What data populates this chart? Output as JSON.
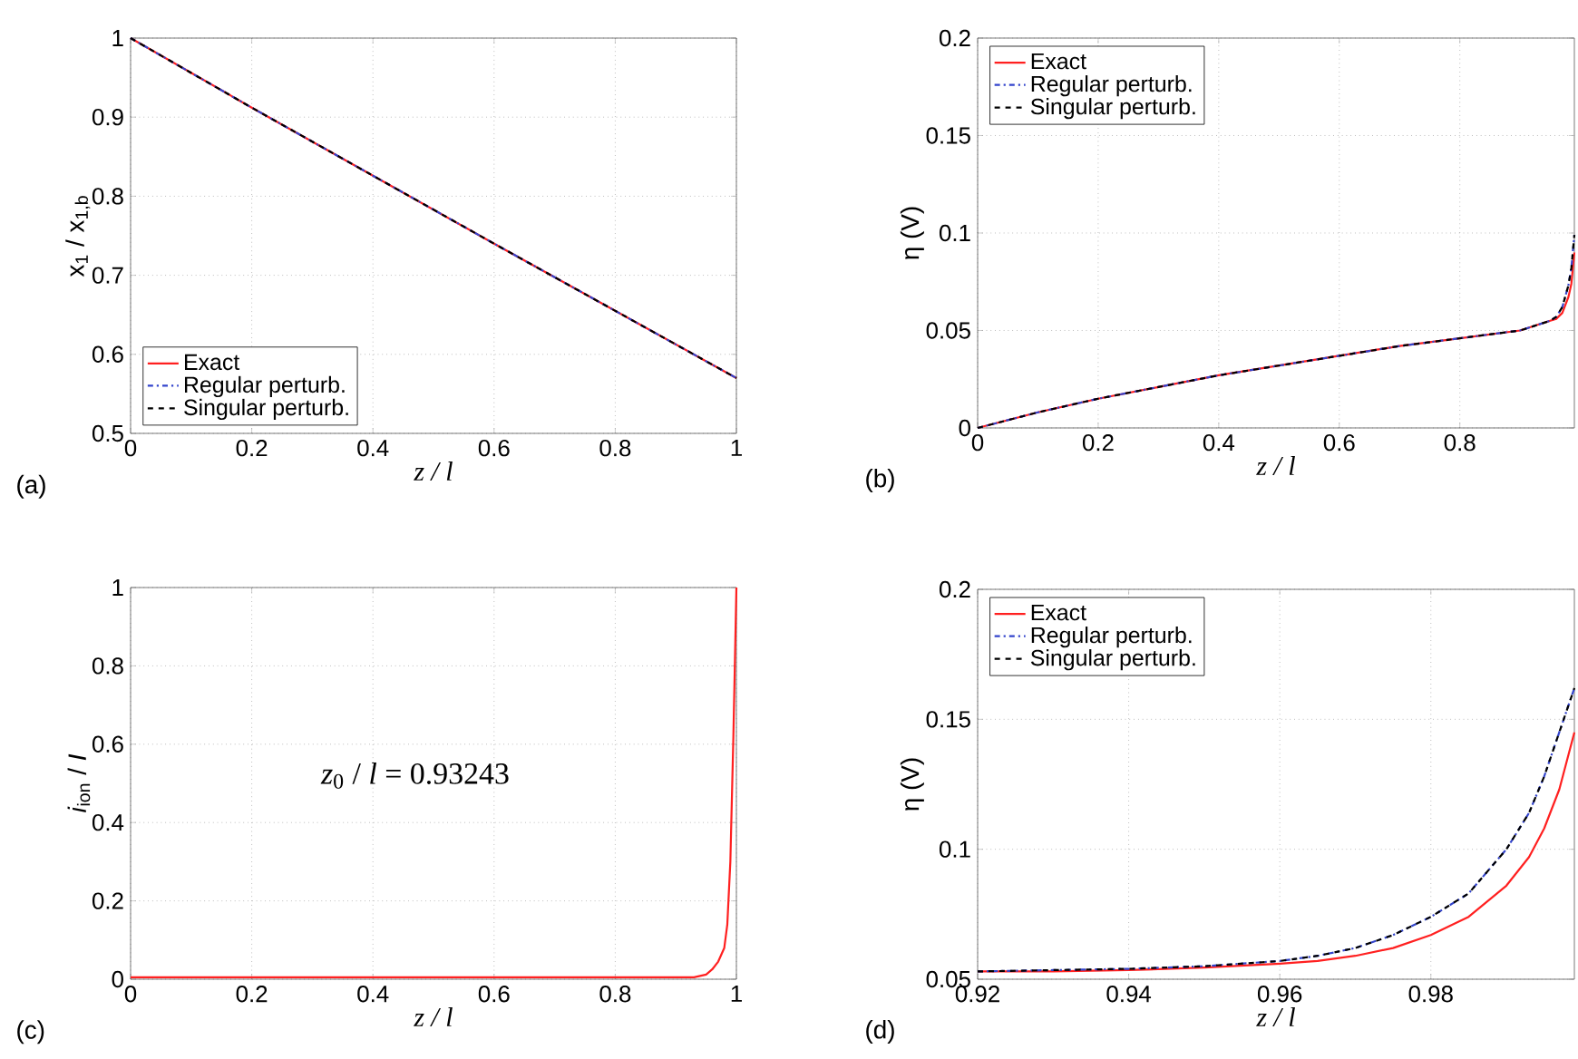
{
  "chart_data": [
    {
      "type": "line",
      "xlabel": "z / l",
      "ylabel": "x$_{1}$ / x$_{1,b}$",
      "xlim": [
        0,
        1
      ],
      "ylim": [
        0.5,
        1
      ],
      "xticks": [
        0,
        0.2,
        0.4,
        0.6,
        0.8,
        1
      ],
      "yticks": [
        0.5,
        0.6,
        0.7,
        0.8,
        0.9,
        1
      ],
      "grid": true,
      "legend": "bottom left",
      "annotations": [
        "(a)"
      ],
      "series": [
        {
          "name": "Exact",
          "color": "#ff2020",
          "line_style": "solid",
          "x": [
            0,
            0.2,
            0.4,
            0.6,
            0.8,
            1
          ],
          "values": [
            1,
            0.912,
            0.826,
            0.74,
            0.655,
            0.57
          ]
        },
        {
          "name": "Regular perturb.",
          "color": "#3344cc",
          "line_style": "dashdot",
          "x": [
            0,
            0.2,
            0.4,
            0.6,
            0.8,
            1
          ],
          "values": [
            1,
            0.912,
            0.826,
            0.74,
            0.655,
            0.57
          ]
        },
        {
          "name": "Singular perturb.",
          "color": "#000000",
          "line_style": "dashed",
          "x": [
            0,
            0.2,
            0.4,
            0.6,
            0.8,
            1
          ],
          "values": [
            1,
            0.912,
            0.826,
            0.74,
            0.655,
            0.57
          ]
        }
      ]
    },
    {
      "type": "line",
      "xlabel": "z / l",
      "ylabel": "η (V)",
      "xlim": [
        0,
        0.99
      ],
      "ylim": [
        0,
        0.2
      ],
      "xticks": [
        0,
        0.2,
        0.4,
        0.6,
        0.8
      ],
      "yticks": [
        0,
        0.05,
        0.1,
        0.15,
        0.2
      ],
      "grid": true,
      "legend": "top left",
      "annotations": [
        "(b)"
      ],
      "series": [
        {
          "name": "Exact",
          "color": "#ff2020",
          "line_style": "solid",
          "x": [
            0,
            0.1,
            0.2,
            0.3,
            0.4,
            0.5,
            0.6,
            0.7,
            0.8,
            0.9,
            0.93,
            0.95,
            0.96,
            0.97,
            0.98,
            0.985,
            0.99
          ],
          "values": [
            0,
            0.008,
            0.015,
            0.021,
            0.027,
            0.032,
            0.037,
            0.042,
            0.046,
            0.05,
            0.053,
            0.055,
            0.056,
            0.059,
            0.067,
            0.074,
            0.09
          ]
        },
        {
          "name": "Regular perturb.",
          "color": "#3344cc",
          "line_style": "dashdot",
          "x": [
            0,
            0.1,
            0.2,
            0.3,
            0.4,
            0.5,
            0.6,
            0.7,
            0.8,
            0.9,
            0.93,
            0.95,
            0.96,
            0.97,
            0.98,
            0.985,
            0.99
          ],
          "values": [
            0,
            0.008,
            0.015,
            0.021,
            0.027,
            0.032,
            0.037,
            0.042,
            0.046,
            0.05,
            0.053,
            0.055,
            0.057,
            0.062,
            0.073,
            0.082,
            0.099
          ]
        },
        {
          "name": "Singular perturb.",
          "color": "#000000",
          "line_style": "dashed",
          "x": [
            0,
            0.1,
            0.2,
            0.3,
            0.4,
            0.5,
            0.6,
            0.7,
            0.8,
            0.9,
            0.93,
            0.95,
            0.96,
            0.97,
            0.98,
            0.985,
            0.99
          ],
          "values": [
            0,
            0.008,
            0.015,
            0.021,
            0.027,
            0.032,
            0.037,
            0.042,
            0.046,
            0.05,
            0.053,
            0.055,
            0.057,
            0.062,
            0.073,
            0.082,
            0.099
          ]
        }
      ]
    },
    {
      "type": "line",
      "xlabel": "z / l",
      "ylabel": "*i*$_{ion}$ / *I*",
      "xlim": [
        0,
        1
      ],
      "ylim": [
        0,
        1
      ],
      "xticks": [
        0,
        0.2,
        0.4,
        0.6,
        0.8,
        1
      ],
      "yticks": [
        0,
        0.2,
        0.4,
        0.6,
        0.8,
        1
      ],
      "grid": true,
      "annotations": [
        "(c)",
        "*z*$_{0}$ / *l* = 0.93243"
      ],
      "series": [
        {
          "color": "#ff2020",
          "line_style": "solid",
          "x": [
            0,
            0.5,
            0.93,
            0.95,
            0.96,
            0.97,
            0.98,
            0.985,
            0.99,
            0.995,
            1
          ],
          "values": [
            0.005,
            0.005,
            0.005,
            0.012,
            0.025,
            0.045,
            0.08,
            0.14,
            0.3,
            0.62,
            1
          ]
        }
      ]
    },
    {
      "type": "line",
      "xlabel": "z / l",
      "ylabel": "η (V)",
      "xlim": [
        0.92,
        0.999
      ],
      "ylim": [
        0.05,
        0.2
      ],
      "xticks": [
        0.92,
        0.94,
        0.96,
        0.98
      ],
      "yticks": [
        0.05,
        0.1,
        0.15,
        0.2
      ],
      "grid": true,
      "legend": "top left",
      "annotations": [
        "(d)"
      ],
      "series": [
        {
          "name": "Exact",
          "color": "#ff2020",
          "line_style": "solid",
          "x": [
            0.92,
            0.93,
            0.94,
            0.95,
            0.96,
            0.965,
            0.97,
            0.975,
            0.98,
            0.985,
            0.99,
            0.993,
            0.995,
            0.997,
            0.999
          ],
          "values": [
            0.053,
            0.053,
            0.0535,
            0.0545,
            0.056,
            0.057,
            0.059,
            0.062,
            0.067,
            0.074,
            0.086,
            0.097,
            0.108,
            0.123,
            0.145
          ]
        },
        {
          "name": "Regular perturb.",
          "color": "#3344cc",
          "line_style": "dashdot",
          "x": [
            0.92,
            0.93,
            0.94,
            0.95,
            0.96,
            0.965,
            0.97,
            0.975,
            0.98,
            0.985,
            0.99,
            0.993,
            0.995,
            0.997,
            0.999
          ],
          "values": [
            0.053,
            0.0535,
            0.054,
            0.055,
            0.057,
            0.059,
            0.062,
            0.067,
            0.074,
            0.083,
            0.1,
            0.114,
            0.128,
            0.145,
            0.162
          ]
        },
        {
          "name": "Singular perturb.",
          "color": "#000000",
          "line_style": "dashed",
          "x": [
            0.92,
            0.93,
            0.94,
            0.95,
            0.96,
            0.965,
            0.97,
            0.975,
            0.98,
            0.985,
            0.99,
            0.993,
            0.995,
            0.997,
            0.999
          ],
          "values": [
            0.053,
            0.0535,
            0.054,
            0.055,
            0.057,
            0.059,
            0.062,
            0.067,
            0.074,
            0.083,
            0.1,
            0.114,
            0.128,
            0.145,
            0.162
          ]
        }
      ]
    }
  ]
}
